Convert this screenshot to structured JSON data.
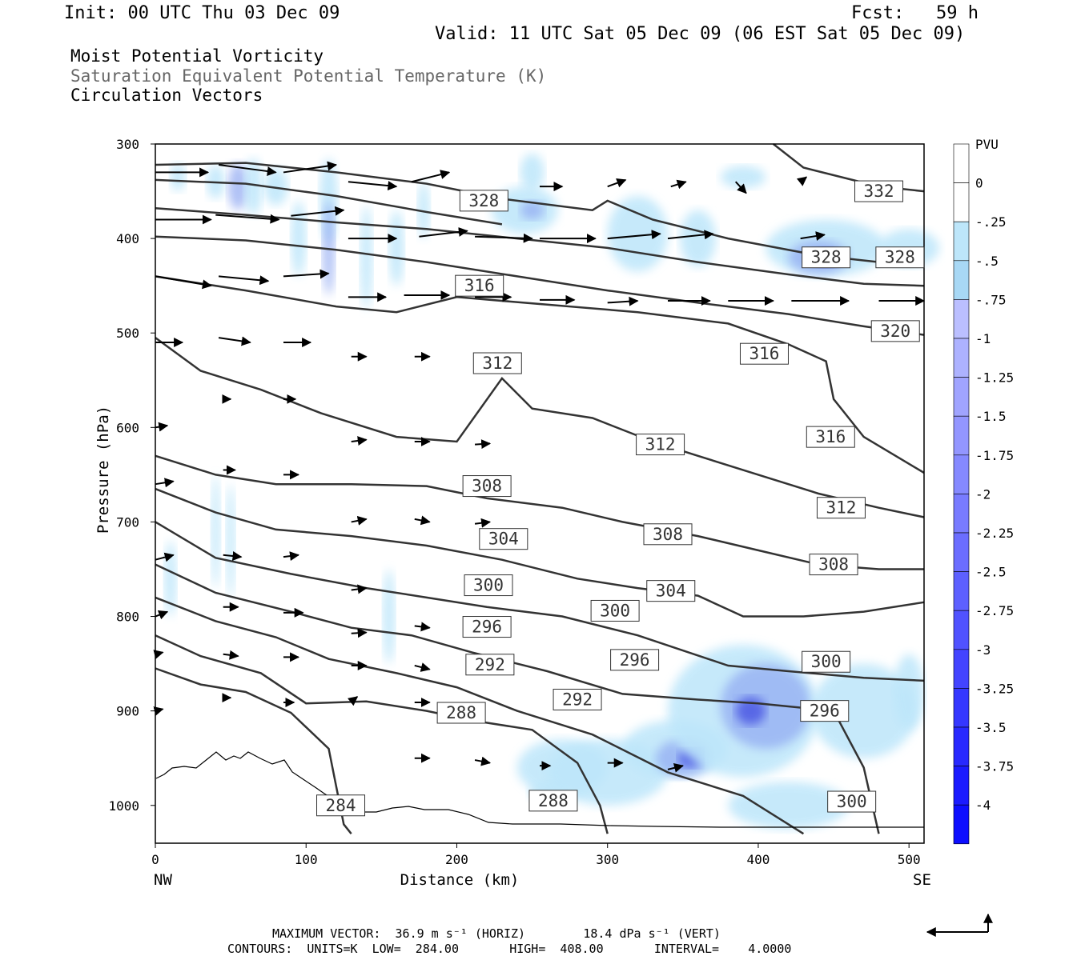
{
  "header": {
    "init": "Init: 00 UTC Thu 03 Dec 09",
    "fcst": "Fcst:   59 h",
    "valid": "Valid: 11 UTC Sat 05 Dec 09 (06 EST Sat 05 Dec 09)"
  },
  "fields": {
    "line1": "Moist Potential Vorticity",
    "line2": "Saturation Equivalent Potential Temperature (K)",
    "line3": "Circulation Vectors"
  },
  "footer": {
    "line1": "MAXIMUM VECTOR:  36.9 m s⁻¹ (HORIZ)        18.4 dPa s⁻¹ (VERT)",
    "line2": "CONTOURS:  UNITS=K  LOW=  284.00       HIGH=  408.00       INTERVAL=    4.0000"
  },
  "colors": {
    "contour": "#333333",
    "shade_light": "#bde6fa",
    "shade_mid": "#8fa8f2",
    "shade_dark": "#3a45e0"
  },
  "chart_data": {
    "type": "heatmap",
    "xlabel": "Distance (km)",
    "ylabel": "Pressure (hPa)",
    "x_ticks": [
      "0",
      "100",
      "200",
      "300",
      "400",
      "500"
    ],
    "x_end_labels": {
      "left": "NW",
      "right": "SE"
    },
    "y_ticks": [
      "300",
      "400",
      "500",
      "600",
      "700",
      "800",
      "900",
      "1000"
    ],
    "xlim": [
      0,
      510
    ],
    "ylim": [
      300,
      1040
    ],
    "y_inverted": true,
    "colorbar": {
      "title": "PVU",
      "ticks": [
        "0",
        "-.25",
        "-.5",
        "-.75",
        "-1",
        "-1.25",
        "-1.5",
        "-1.75",
        "-2",
        "-2.25",
        "-2.5",
        "-2.75",
        "-3",
        "-3.25",
        "-3.5",
        "-3.75",
        "-4"
      ]
    },
    "contour_labels": [
      {
        "value": "332",
        "x": 480,
        "p": 350
      },
      {
        "value": "328",
        "x": 218,
        "p": 360
      },
      {
        "value": "328",
        "x": 445,
        "p": 420
      },
      {
        "value": "328",
        "x": 494,
        "p": 420
      },
      {
        "value": "316",
        "x": 215,
        "p": 450
      },
      {
        "value": "320",
        "x": 491,
        "p": 498
      },
      {
        "value": "312",
        "x": 227,
        "p": 532
      },
      {
        "value": "316",
        "x": 404,
        "p": 522
      },
      {
        "value": "312",
        "x": 335,
        "p": 618
      },
      {
        "value": "316",
        "x": 448,
        "p": 610
      },
      {
        "value": "308",
        "x": 220,
        "p": 662
      },
      {
        "value": "312",
        "x": 455,
        "p": 685
      },
      {
        "value": "304",
        "x": 231,
        "p": 718
      },
      {
        "value": "308",
        "x": 340,
        "p": 713
      },
      {
        "value": "308",
        "x": 450,
        "p": 745
      },
      {
        "value": "300",
        "x": 221,
        "p": 767
      },
      {
        "value": "304",
        "x": 342,
        "p": 773
      },
      {
        "value": "300",
        "x": 305,
        "p": 794
      },
      {
        "value": "296",
        "x": 220,
        "p": 811
      },
      {
        "value": "296",
        "x": 318,
        "p": 846
      },
      {
        "value": "300",
        "x": 445,
        "p": 848
      },
      {
        "value": "292",
        "x": 222,
        "p": 851
      },
      {
        "value": "292",
        "x": 280,
        "p": 888
      },
      {
        "value": "296",
        "x": 444,
        "p": 900
      },
      {
        "value": "288",
        "x": 203,
        "p": 902
      },
      {
        "value": "300",
        "x": 462,
        "p": 996
      },
      {
        "value": "284",
        "x": 123,
        "p": 1000
      },
      {
        "value": "288",
        "x": 264,
        "p": 995
      }
    ],
    "contours": [
      {
        "value": 332,
        "points": [
          [
            410,
            300
          ],
          [
            430,
            325
          ],
          [
            480,
            345
          ],
          [
            510,
            350
          ]
        ]
      },
      {
        "value": 328,
        "points": [
          [
            0,
            322
          ],
          [
            60,
            320
          ],
          [
            120,
            330
          ],
          [
            180,
            342
          ],
          [
            230,
            358
          ],
          [
            290,
            370
          ],
          [
            300,
            360
          ],
          [
            330,
            380
          ],
          [
            380,
            400
          ],
          [
            440,
            418
          ],
          [
            480,
            425
          ],
          [
            510,
            418
          ]
        ]
      },
      {
        "value": 328,
        "points": [
          [
            0,
            338
          ],
          [
            60,
            342
          ],
          [
            120,
            355
          ],
          [
            180,
            372
          ],
          [
            230,
            385
          ]
        ]
      },
      {
        "value": 324,
        "points": [
          [
            0,
            368
          ],
          [
            60,
            375
          ],
          [
            120,
            383
          ],
          [
            180,
            390
          ],
          [
            240,
            400
          ],
          [
            300,
            410
          ],
          [
            360,
            425
          ],
          [
            420,
            438
          ],
          [
            470,
            448
          ],
          [
            510,
            450
          ]
        ]
      },
      {
        "value": 320,
        "points": [
          [
            0,
            398
          ],
          [
            60,
            402
          ],
          [
            120,
            412
          ],
          [
            180,
            425
          ],
          [
            240,
            440
          ],
          [
            300,
            455
          ],
          [
            360,
            468
          ],
          [
            420,
            480
          ],
          [
            470,
            493
          ],
          [
            510,
            502
          ]
        ]
      },
      {
        "value": 316,
        "points": [
          [
            0,
            440
          ],
          [
            60,
            455
          ],
          [
            120,
            472
          ],
          [
            160,
            478
          ],
          [
            200,
            462
          ],
          [
            260,
            470
          ],
          [
            320,
            478
          ],
          [
            380,
            490
          ],
          [
            420,
            512
          ],
          [
            445,
            530
          ],
          [
            450,
            570
          ],
          [
            470,
            610
          ],
          [
            510,
            648
          ]
        ]
      },
      {
        "value": 312,
        "points": [
          [
            0,
            505
          ],
          [
            30,
            540
          ],
          [
            70,
            560
          ],
          [
            110,
            585
          ],
          [
            160,
            610
          ],
          [
            200,
            615
          ],
          [
            230,
            548
          ],
          [
            250,
            580
          ],
          [
            290,
            590
          ],
          [
            330,
            615
          ],
          [
            360,
            630
          ],
          [
            400,
            650
          ],
          [
            440,
            670
          ],
          [
            480,
            685
          ],
          [
            510,
            695
          ]
        ]
      },
      {
        "value": 308,
        "points": [
          [
            0,
            630
          ],
          [
            40,
            650
          ],
          [
            80,
            660
          ],
          [
            130,
            660
          ],
          [
            180,
            662
          ],
          [
            220,
            675
          ],
          [
            270,
            685
          ],
          [
            310,
            700
          ],
          [
            360,
            715
          ],
          [
            400,
            730
          ],
          [
            440,
            745
          ],
          [
            480,
            750
          ],
          [
            510,
            750
          ]
        ]
      },
      {
        "value": 304,
        "points": [
          [
            0,
            665
          ],
          [
            40,
            690
          ],
          [
            80,
            708
          ],
          [
            130,
            715
          ],
          [
            180,
            725
          ],
          [
            230,
            740
          ],
          [
            280,
            760
          ],
          [
            320,
            770
          ],
          [
            360,
            778
          ],
          [
            390,
            800
          ],
          [
            430,
            800
          ],
          [
            470,
            795
          ],
          [
            510,
            785
          ]
        ]
      },
      {
        "value": 300,
        "points": [
          [
            0,
            700
          ],
          [
            40,
            738
          ],
          [
            90,
            755
          ],
          [
            140,
            770
          ],
          [
            180,
            780
          ],
          [
            220,
            790
          ],
          [
            270,
            800
          ],
          [
            320,
            820
          ],
          [
            380,
            852
          ],
          [
            420,
            858
          ],
          [
            470,
            865
          ],
          [
            510,
            868
          ]
        ]
      },
      {
        "value": 296,
        "points": [
          [
            0,
            745
          ],
          [
            40,
            775
          ],
          [
            90,
            795
          ],
          [
            130,
            812
          ],
          [
            170,
            820
          ],
          [
            210,
            838
          ],
          [
            260,
            858
          ],
          [
            310,
            882
          ],
          [
            360,
            888
          ],
          [
            400,
            892
          ],
          [
            450,
            900
          ],
          [
            470,
            960
          ],
          [
            480,
            1030
          ]
        ]
      },
      {
        "value": 292,
        "points": [
          [
            0,
            780
          ],
          [
            40,
            805
          ],
          [
            80,
            822
          ],
          [
            115,
            845
          ],
          [
            160,
            860
          ],
          [
            200,
            875
          ],
          [
            240,
            900
          ],
          [
            290,
            925
          ],
          [
            340,
            965
          ],
          [
            390,
            990
          ],
          [
            430,
            1030
          ]
        ]
      },
      {
        "value": 288,
        "points": [
          [
            0,
            820
          ],
          [
            30,
            842
          ],
          [
            70,
            860
          ],
          [
            100,
            892
          ],
          [
            140,
            890
          ],
          [
            180,
            900
          ],
          [
            210,
            910
          ],
          [
            250,
            920
          ],
          [
            280,
            955
          ],
          [
            295,
            1000
          ],
          [
            300,
            1030
          ]
        ]
      },
      {
        "value": 284,
        "points": [
          [
            0,
            855
          ],
          [
            30,
            872
          ],
          [
            60,
            880
          ],
          [
            90,
            902
          ],
          [
            115,
            940
          ],
          [
            120,
            980
          ],
          [
            125,
            1020
          ],
          [
            130,
            1030
          ]
        ]
      }
    ]
  }
}
